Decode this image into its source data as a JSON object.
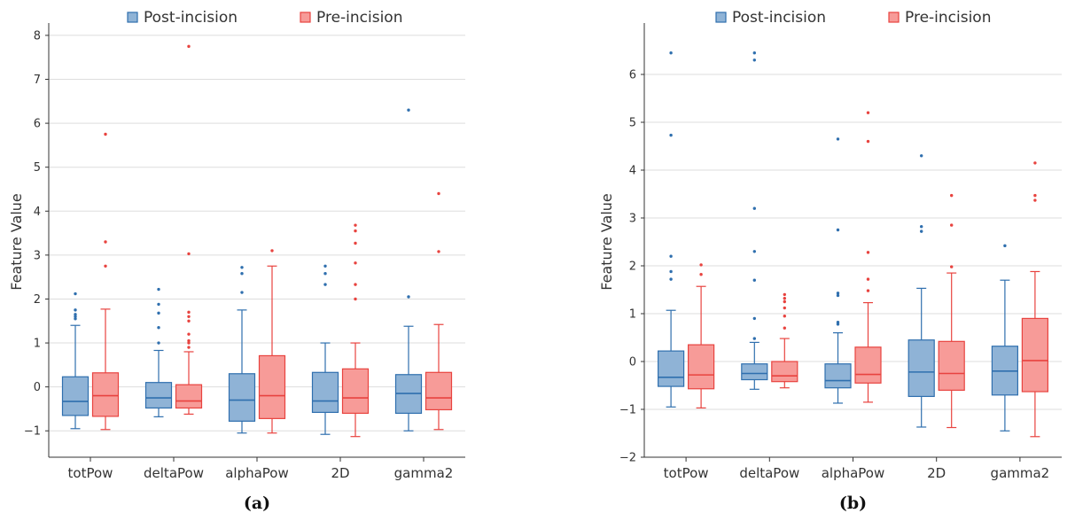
{
  "chart_data": [
    {
      "type": "box",
      "caption": "(a)",
      "title": "",
      "xlabel": "",
      "ylabel": "Feature Value",
      "ylim": [
        -1.6,
        8.2
      ],
      "yticks": [
        -1,
        0,
        1,
        2,
        3,
        4,
        5,
        6,
        7,
        8
      ],
      "grid": true,
      "legend": "top",
      "categories": [
        "totPow",
        "deltaPow",
        "alphaPow",
        "2D",
        "gamma2"
      ],
      "series": [
        {
          "name": "Post-incision",
          "fill": "#8fb3d6",
          "stroke": "#2f6fae",
          "boxes": [
            {
              "q1": -0.65,
              "median": -0.33,
              "q3": 0.23,
              "whisker_low": -0.95,
              "whisker_high": 1.4,
              "outliers": [
                1.55,
                1.6,
                1.65,
                1.75,
                2.12
              ]
            },
            {
              "q1": -0.48,
              "median": -0.25,
              "q3": 0.1,
              "whisker_low": -0.68,
              "whisker_high": 0.83,
              "outliers": [
                1.0,
                1.35,
                1.68,
                1.88,
                2.22
              ]
            },
            {
              "q1": -0.78,
              "median": -0.3,
              "q3": 0.3,
              "whisker_low": -1.05,
              "whisker_high": 1.75,
              "outliers": [
                2.15,
                2.58,
                2.72
              ]
            },
            {
              "q1": -0.58,
              "median": -0.32,
              "q3": 0.33,
              "whisker_low": -1.08,
              "whisker_high": 1.0,
              "outliers": [
                2.33,
                2.58,
                2.75
              ]
            },
            {
              "q1": -0.6,
              "median": -0.15,
              "q3": 0.28,
              "whisker_low": -1.0,
              "whisker_high": 1.38,
              "outliers": [
                2.05,
                6.3
              ]
            }
          ]
        },
        {
          "name": "Pre-incision",
          "fill": "#f79b98",
          "stroke": "#e8433f",
          "boxes": [
            {
              "q1": -0.67,
              "median": -0.2,
              "q3": 0.32,
              "whisker_low": -0.97,
              "whisker_high": 1.77,
              "outliers": [
                2.75,
                3.3,
                5.75
              ]
            },
            {
              "q1": -0.48,
              "median": -0.32,
              "q3": 0.05,
              "whisker_low": -0.62,
              "whisker_high": 0.8,
              "outliers": [
                0.9,
                1.0,
                1.05,
                1.2,
                1.5,
                1.6,
                1.7,
                3.03,
                7.75
              ]
            },
            {
              "q1": -0.72,
              "median": -0.2,
              "q3": 0.71,
              "whisker_low": -1.05,
              "whisker_high": 2.75,
              "outliers": [
                3.1
              ]
            },
            {
              "q1": -0.6,
              "median": -0.25,
              "q3": 0.41,
              "whisker_low": -1.13,
              "whisker_high": 1.0,
              "outliers": [
                2.0,
                2.33,
                2.82,
                3.27,
                3.55,
                3.68
              ]
            },
            {
              "q1": -0.52,
              "median": -0.25,
              "q3": 0.33,
              "whisker_low": -0.97,
              "whisker_high": 1.42,
              "outliers": [
                3.08,
                4.4
              ]
            }
          ]
        }
      ]
    },
    {
      "type": "box",
      "caption": "(b)",
      "title": "",
      "xlabel": "",
      "ylabel": "Feature Value",
      "ylim": [
        -2.0,
        7.0
      ],
      "yticks": [
        -2,
        -1,
        0,
        1,
        2,
        3,
        4,
        5,
        6
      ],
      "grid": true,
      "legend": "top",
      "categories": [
        "totPow",
        "deltaPow",
        "alphaPow",
        "2D",
        "gamma2"
      ],
      "series": [
        {
          "name": "Post-incision",
          "fill": "#8fb3d6",
          "stroke": "#2f6fae",
          "boxes": [
            {
              "q1": -0.52,
              "median": -0.33,
              "q3": 0.22,
              "whisker_low": -0.95,
              "whisker_high": 1.07,
              "outliers": [
                1.72,
                1.88,
                2.2,
                4.73,
                6.45
              ]
            },
            {
              "q1": -0.38,
              "median": -0.25,
              "q3": -0.05,
              "whisker_low": -0.58,
              "whisker_high": 0.4,
              "outliers": [
                0.48,
                0.9,
                1.7,
                2.3,
                3.2,
                6.3,
                6.45
              ]
            },
            {
              "q1": -0.55,
              "median": -0.4,
              "q3": -0.05,
              "whisker_low": -0.87,
              "whisker_high": 0.6,
              "outliers": [
                0.78,
                0.82,
                1.38,
                1.43,
                2.75,
                4.65
              ]
            },
            {
              "q1": -0.73,
              "median": -0.22,
              "q3": 0.45,
              "whisker_low": -1.37,
              "whisker_high": 1.53,
              "outliers": [
                2.72,
                2.82,
                4.3
              ]
            },
            {
              "q1": -0.7,
              "median": -0.2,
              "q3": 0.32,
              "whisker_low": -1.45,
              "whisker_high": 1.7,
              "outliers": [
                2.42
              ]
            }
          ]
        },
        {
          "name": "Pre-incision",
          "fill": "#f79b98",
          "stroke": "#e8433f",
          "boxes": [
            {
              "q1": -0.57,
              "median": -0.28,
              "q3": 0.35,
              "whisker_low": -0.97,
              "whisker_high": 1.57,
              "outliers": [
                1.82,
                2.02
              ]
            },
            {
              "q1": -0.42,
              "median": -0.3,
              "q3": 0.0,
              "whisker_low": -0.55,
              "whisker_high": 0.48,
              "outliers": [
                0.7,
                0.95,
                1.12,
                1.25,
                1.32,
                1.4
              ]
            },
            {
              "q1": -0.45,
              "median": -0.27,
              "q3": 0.3,
              "whisker_low": -0.85,
              "whisker_high": 1.23,
              "outliers": [
                1.48,
                1.72,
                2.28,
                4.6,
                5.2
              ]
            },
            {
              "q1": -0.6,
              "median": -0.25,
              "q3": 0.42,
              "whisker_low": -1.38,
              "whisker_high": 1.85,
              "outliers": [
                1.98,
                2.85,
                3.47
              ]
            },
            {
              "q1": -0.63,
              "median": 0.02,
              "q3": 0.9,
              "whisker_low": -1.57,
              "whisker_high": 1.88,
              "outliers": [
                3.37,
                3.47,
                4.15
              ]
            }
          ]
        }
      ]
    }
  ]
}
